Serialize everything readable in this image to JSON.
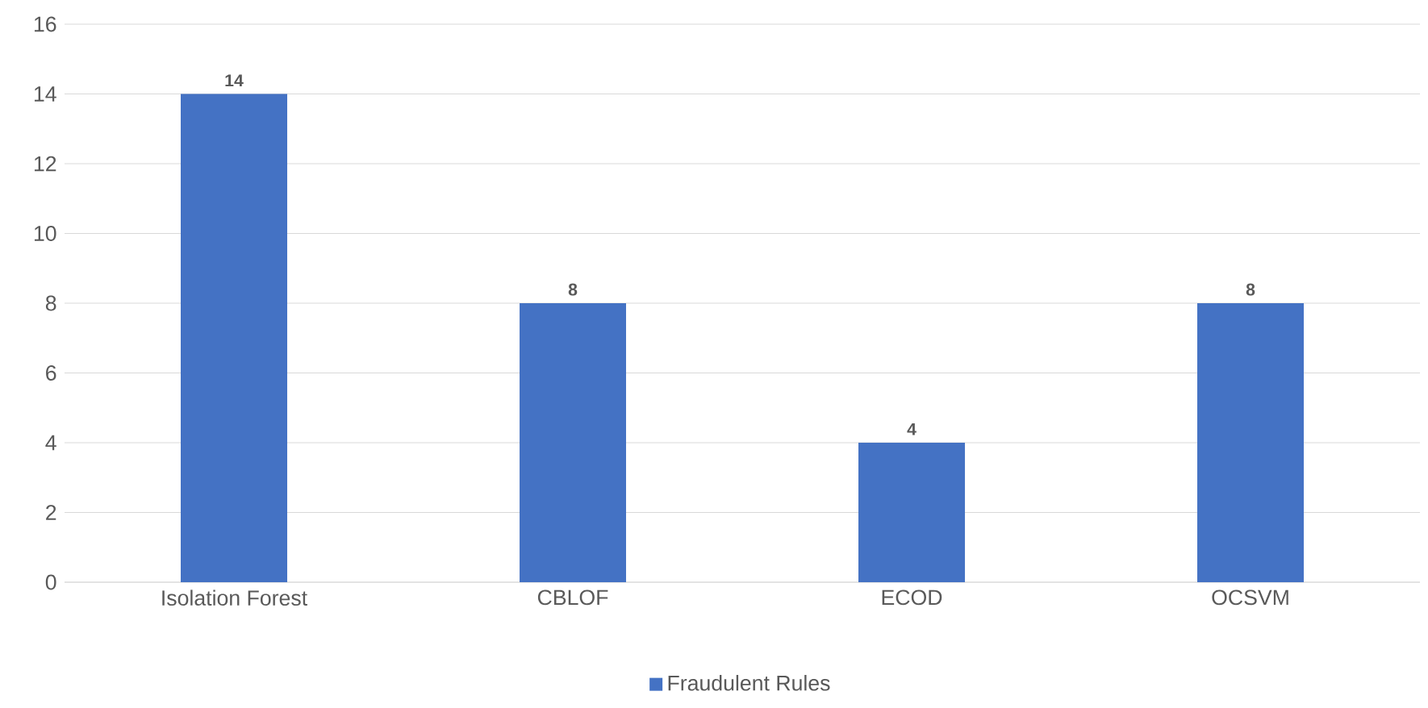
{
  "chart_data": {
    "type": "bar",
    "categories": [
      "Isolation Forest",
      "CBLOF",
      "ECOD",
      "OCSVM"
    ],
    "series": [
      {
        "name": "Fraudulent Rules",
        "color": "#4472c4",
        "values": [
          14,
          8,
          4,
          8
        ]
      }
    ],
    "ylim": [
      0,
      16
    ],
    "yticks": [
      0,
      2,
      4,
      6,
      8,
      10,
      12,
      14,
      16
    ],
    "grid": "y",
    "legend": "bottom",
    "data_labels": true
  }
}
